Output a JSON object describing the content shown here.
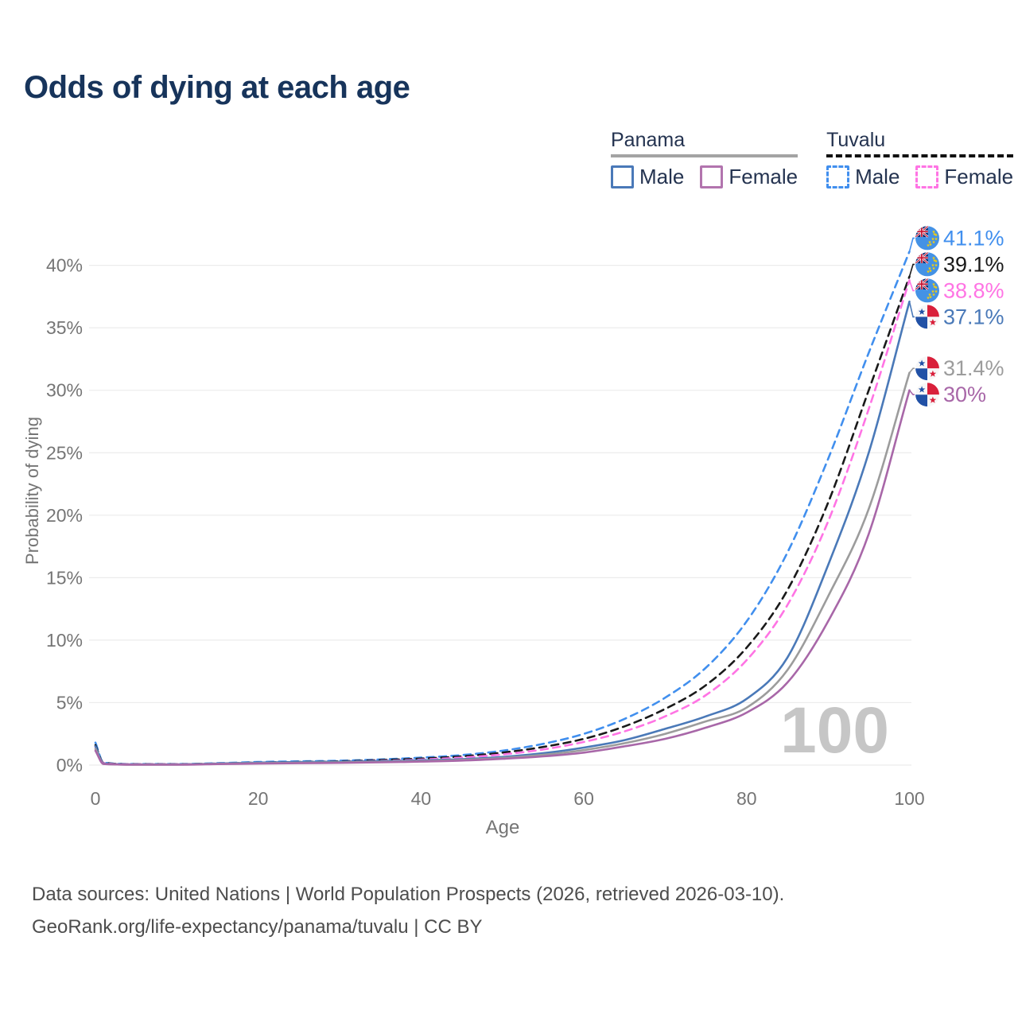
{
  "title": "Odds of dying at each age",
  "watermark_age": "100",
  "legend": {
    "panama": {
      "country": "Panama",
      "line_style": "solid",
      "underline_color": "#a3a3a3",
      "male_label": "Male",
      "female_label": "Female",
      "male_color": "#4a79b8",
      "female_color": "#b274ae"
    },
    "tuvalu": {
      "country": "Tuvalu",
      "line_style": "dashed",
      "underline_color": "#111111",
      "male_label": "Male",
      "female_label": "Female",
      "male_color": "#418fee",
      "female_color": "#ff74e4"
    }
  },
  "axes": {
    "x": {
      "label": "Age",
      "range": [
        0,
        100
      ],
      "ticks": [
        {
          "value": 0,
          "label": "0"
        },
        {
          "value": 20,
          "label": "20"
        },
        {
          "value": 40,
          "label": "40"
        },
        {
          "value": 60,
          "label": "60"
        },
        {
          "value": 80,
          "label": "80"
        },
        {
          "value": 100,
          "label": "100"
        }
      ]
    },
    "y": {
      "label": "Probability of dying",
      "range": [
        0,
        43
      ],
      "grid": true,
      "ticks": [
        {
          "value": 0,
          "label": "0%"
        },
        {
          "value": 5,
          "label": "5%"
        },
        {
          "value": 10,
          "label": "10%"
        },
        {
          "value": 15,
          "label": "15%"
        },
        {
          "value": 20,
          "label": "20%"
        },
        {
          "value": 25,
          "label": "25%"
        },
        {
          "value": 30,
          "label": "30%"
        },
        {
          "value": 35,
          "label": "35%"
        },
        {
          "value": 40,
          "label": "40%"
        }
      ]
    }
  },
  "chart_data": {
    "type": "line",
    "title": "Odds of dying at each age",
    "xlabel": "Age",
    "ylabel": "Probability of dying",
    "xlim": [
      0,
      100
    ],
    "ylim": [
      0,
      43
    ],
    "legend_position": "top-right",
    "grid": "horizontal-only",
    "x": [
      0,
      1,
      5,
      10,
      15,
      20,
      25,
      30,
      35,
      40,
      45,
      50,
      55,
      60,
      65,
      70,
      75,
      80,
      85,
      90,
      95,
      100
    ],
    "series": [
      {
        "name": "Tuvalu Male",
        "country": "tuvalu",
        "sex": "male",
        "color": "#418fee",
        "dash": true,
        "end_label": "41.1%",
        "end_value": 41.1,
        "values": [
          1.8,
          0.2,
          0.08,
          0.08,
          0.15,
          0.25,
          0.3,
          0.35,
          0.45,
          0.6,
          0.8,
          1.15,
          1.7,
          2.5,
          3.7,
          5.4,
          7.8,
          11.5,
          17.0,
          24.5,
          33.0,
          41.1
        ]
      },
      {
        "name": "Tuvalu Both sexes",
        "country": "tuvalu",
        "sex": "all",
        "color": "#1a1a1a",
        "dash": true,
        "end_label": "39.1%",
        "end_value": 39.1,
        "values": [
          1.6,
          0.18,
          0.07,
          0.07,
          0.12,
          0.2,
          0.25,
          0.3,
          0.4,
          0.52,
          0.7,
          1.0,
          1.45,
          2.1,
          3.1,
          4.5,
          6.4,
          9.4,
          14.0,
          21.0,
          30.0,
          39.1
        ]
      },
      {
        "name": "Tuvalu Female",
        "country": "tuvalu",
        "sex": "female",
        "color": "#ff74e4",
        "dash": true,
        "end_label": "38.8%",
        "end_value": 38.8,
        "values": [
          1.45,
          0.16,
          0.06,
          0.06,
          0.1,
          0.16,
          0.21,
          0.26,
          0.34,
          0.44,
          0.6,
          0.85,
          1.25,
          1.85,
          2.7,
          3.9,
          5.6,
          8.4,
          12.8,
          19.5,
          28.5,
          38.8
        ]
      },
      {
        "name": "Panama Male",
        "country": "panama",
        "sex": "male",
        "color": "#4a79b8",
        "dash": false,
        "end_label": "37.1%",
        "end_value": 37.1,
        "values": [
          1.5,
          0.12,
          0.05,
          0.05,
          0.12,
          0.2,
          0.24,
          0.27,
          0.31,
          0.38,
          0.48,
          0.65,
          0.95,
          1.4,
          2.0,
          2.9,
          3.9,
          5.3,
          8.6,
          16.0,
          25.0,
          37.1
        ]
      },
      {
        "name": "Panama Both sexes",
        "country": "panama",
        "sex": "all",
        "color": "#9c9c9c",
        "dash": false,
        "end_label": "31.4%",
        "end_value": 31.4,
        "values": [
          1.3,
          0.1,
          0.04,
          0.04,
          0.1,
          0.16,
          0.19,
          0.22,
          0.26,
          0.32,
          0.42,
          0.57,
          0.82,
          1.2,
          1.75,
          2.5,
          3.5,
          4.6,
          7.6,
          13.5,
          20.5,
          31.4
        ]
      },
      {
        "name": "Panama Female",
        "country": "panama",
        "sex": "female",
        "color": "#a867a8",
        "dash": false,
        "end_label": "30%",
        "end_value": 30.0,
        "values": [
          1.15,
          0.09,
          0.035,
          0.035,
          0.08,
          0.12,
          0.15,
          0.18,
          0.22,
          0.28,
          0.36,
          0.5,
          0.7,
          1.0,
          1.5,
          2.1,
          3.0,
          4.2,
          6.6,
          11.5,
          18.5,
          30.0
        ]
      }
    ]
  },
  "flags": {
    "tuvalu": {
      "base": "#4492e5",
      "canton": "#012169",
      "cross": "#C8102E",
      "star": "#FFD100"
    },
    "panama": {
      "blue": "#2151A6",
      "red": "#D9203B",
      "white": "#f7f7f7"
    }
  },
  "colors": {
    "title": "#17345b",
    "axis_text": "#757575",
    "gridline": "#ececec",
    "watermark": "#c6c6c6",
    "footer_text": "#4d4d4d"
  },
  "footer": {
    "line1": "Data sources: United Nations | World Population Prospects (2026, retrieved 2026-03-10).",
    "line2": "GeoRank.org/life-expectancy/panama/tuvalu | CC BY"
  }
}
